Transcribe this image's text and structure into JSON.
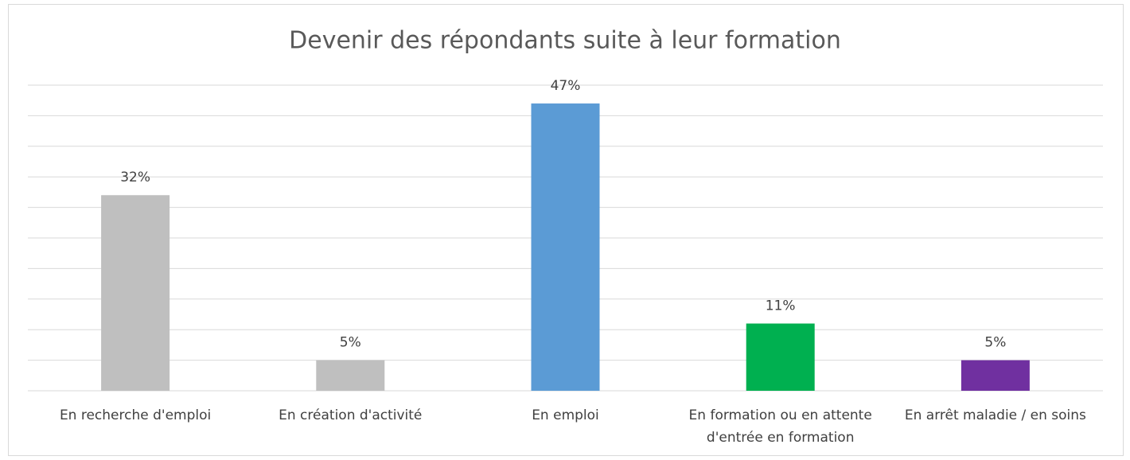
{
  "chart_data": {
    "type": "bar",
    "title": "Devenir des répondants suite à leur formation",
    "categories": [
      "En recherche d'emploi",
      "En création d'activité",
      "En emploi",
      "En formation ou en attente d'entrée en formation",
      "En arrêt maladie / en soins"
    ],
    "values": [
      32,
      5,
      47,
      11,
      5
    ],
    "value_labels": [
      "32%",
      "5%",
      "47%",
      "11%",
      "5%"
    ],
    "colors": [
      "#bfbfbf",
      "#bfbfbf",
      "#5b9bd5",
      "#00b050",
      "#7030a0"
    ],
    "ylim": [
      0,
      50
    ],
    "yticks": [
      0,
      5,
      10,
      15,
      20,
      25,
      30,
      35,
      40,
      45,
      50
    ],
    "grid": true
  }
}
